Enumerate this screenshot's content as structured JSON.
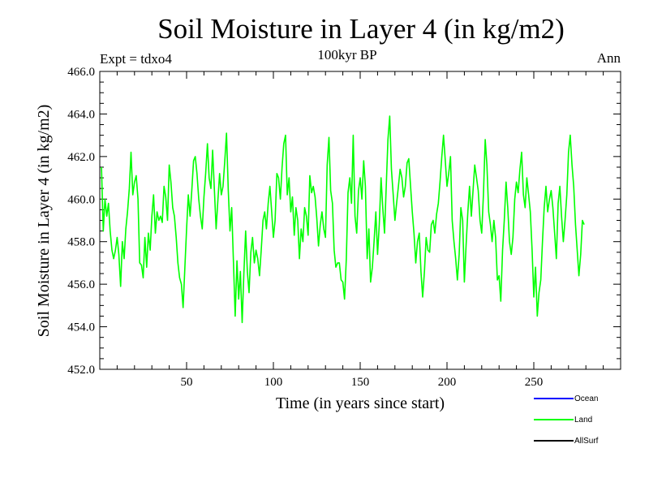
{
  "chart_data": {
    "type": "line",
    "title": "Soil Moisture in Layer 4 (in kg/m2)",
    "subtitle": "100kyr BP",
    "experiment_label": "Expt = tdxo4",
    "period_label": "Ann",
    "xlabel": "Time (in years since start)",
    "ylabel": "Soil Moisture in Layer 4 (in kg/m2)",
    "xlim": [
      0,
      300
    ],
    "ylim": [
      452.0,
      466.0
    ],
    "x_ticks": [
      50,
      100,
      150,
      200,
      250
    ],
    "x_tick_labels": [
      "50",
      "100",
      "150",
      "200",
      "250"
    ],
    "y_ticks": [
      452,
      454,
      456,
      458,
      460,
      462,
      464,
      466
    ],
    "y_tick_labels": [
      "452.0",
      "454.0",
      "456.0",
      "458.0",
      "460.0",
      "462.0",
      "464.0",
      "466.0"
    ],
    "legend": [
      {
        "name": "Ocean",
        "color": "#0000ff"
      },
      {
        "name": "Land",
        "color": "#00ff00"
      },
      {
        "name": "AllSurf",
        "color": "#000000"
      }
    ],
    "series": [
      {
        "name": "Land",
        "color": "#00ff00",
        "x_start": 1,
        "x_step": 1,
        "values": [
          461.5,
          458.5,
          460.0,
          459.2,
          459.8,
          458.5,
          457.6,
          457.2,
          457.6,
          458.2,
          457.4,
          455.9,
          458.0,
          457.2,
          458.6,
          459.4,
          460.5,
          462.2,
          460.2,
          460.8,
          461.1,
          460.0,
          457.0,
          456.9,
          456.3,
          458.2,
          456.8,
          458.4,
          457.6,
          459.2,
          460.2,
          458.4,
          459.4,
          459.0,
          459.2,
          458.9,
          460.6,
          460.1,
          459.0,
          461.6,
          460.8,
          459.6,
          459.2,
          458.2,
          457.0,
          456.3,
          456.0,
          454.9,
          456.8,
          458.6,
          460.2,
          459.2,
          460.4,
          461.8,
          462.0,
          461.2,
          460.0,
          459.2,
          458.6,
          460.1,
          461.2,
          462.6,
          461.0,
          460.5,
          462.3,
          460.5,
          458.6,
          459.9,
          461.2,
          460.2,
          460.6,
          461.8,
          463.1,
          460.4,
          458.5,
          459.6,
          457.0,
          454.5,
          457.1,
          455.3,
          456.6,
          454.2,
          456.5,
          458.5,
          456.6,
          455.6,
          457.5,
          458.2,
          457.0,
          457.6,
          457.2,
          456.4,
          457.6,
          459.0,
          459.4,
          458.6,
          459.8,
          460.6,
          459.4,
          458.2,
          459.0,
          461.2,
          461.0,
          460.0,
          461.5,
          462.6,
          463.0,
          460.2,
          461.0,
          459.4,
          460.1,
          458.3,
          459.6,
          459.0,
          457.2,
          458.6,
          458.0,
          459.6,
          459.2,
          458.3,
          461.1,
          460.3,
          460.6,
          460.1,
          459.1,
          457.8,
          458.8,
          459.4,
          458.6,
          458.2,
          461.6,
          462.9,
          460.4,
          459.8,
          457.6,
          456.8,
          457.0,
          457.0,
          456.2,
          456.1,
          455.3,
          457.2,
          460.3,
          461.0,
          459.8,
          463.0,
          459.2,
          458.4,
          460.4,
          461.0,
          460.0,
          461.8,
          460.6,
          457.2,
          458.6,
          456.1,
          456.8,
          458.0,
          459.4,
          457.4,
          458.8,
          461.0,
          459.6,
          458.4,
          460.6,
          462.8,
          463.9,
          461.4,
          460.2,
          459.0,
          459.8,
          460.6,
          461.4,
          461.0,
          460.1,
          460.6,
          461.7,
          461.9,
          460.6,
          459.4,
          458.4,
          457.0,
          458.0,
          458.4,
          456.6,
          455.4,
          456.6,
          458.2,
          457.6,
          457.5,
          458.8,
          459.0,
          458.4,
          459.3,
          459.8,
          460.8,
          462.0,
          463.0,
          461.8,
          460.6,
          461.2,
          462.0,
          459.0,
          458.0,
          457.2,
          456.2,
          457.4,
          459.6,
          459.0,
          456.1,
          457.8,
          459.4,
          460.6,
          459.2,
          460.4,
          461.6,
          461.0,
          460.4,
          459.0,
          458.4,
          460.2,
          462.8,
          461.6,
          459.4,
          458.8,
          458.0,
          459.0,
          458.2,
          456.2,
          456.4,
          455.2,
          457.6,
          459.0,
          460.8,
          459.6,
          458.0,
          457.4,
          458.2,
          460.0,
          460.8,
          460.3,
          461.4,
          462.2,
          460.2,
          459.6,
          461.0,
          460.2,
          459.4,
          457.6,
          455.4,
          456.8,
          454.5,
          455.6,
          456.2,
          458.0,
          459.6,
          460.6,
          459.4,
          460.0,
          460.4,
          459.6,
          458.4,
          457.2,
          459.8,
          460.6,
          459.2,
          458.0,
          459.0,
          460.2,
          462.2,
          463.0,
          461.6,
          460.6,
          458.8,
          457.6,
          456.4,
          457.4,
          459.0,
          458.8
        ]
      }
    ]
  }
}
